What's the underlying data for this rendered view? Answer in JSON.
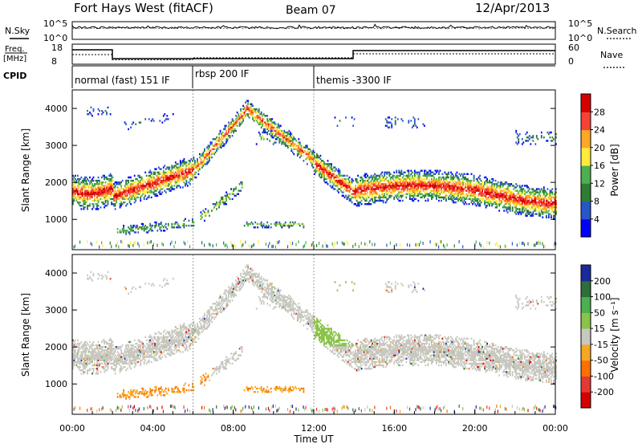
{
  "header": {
    "title": "Fort Hays West (fitACF)",
    "beam": "Beam 07",
    "date": "12/Apr/2013"
  },
  "top_panels": {
    "nsky_label": "N.Sky",
    "nsearch_label": "N.Search",
    "noise_ticks": [
      "10^5",
      "10^0"
    ],
    "freq_label": "Freq.",
    "freq_unit": "[MHz]",
    "freq_ticks": [
      "18",
      "8"
    ],
    "nave_label": "Nave",
    "nave_ticks": [
      "60",
      "0"
    ],
    "cpid_label": "CPID"
  },
  "cpid_segments": [
    {
      "label": "normal (fast) 151 IF",
      "start_hour": 0,
      "end_hour": 6
    },
    {
      "label": "rbsp 200 IF",
      "start_hour": 6,
      "end_hour": 12
    },
    {
      "label": "themis -3300 IF",
      "start_hour": 12,
      "end_hour": 24
    }
  ],
  "chart_data": [
    {
      "type": "heatmap",
      "name": "power",
      "ylabel": "Slant Range [km]",
      "ylim": [
        180,
        4500
      ],
      "yticks": [
        "1000",
        "2000",
        "3000",
        "4000"
      ],
      "colorbar_label": "Power [dB]",
      "colorbar_ticks": [
        "28",
        "24",
        "20",
        "16",
        "12",
        "8",
        "4"
      ],
      "colors": [
        "#0000ff",
        "#2a55c8",
        "#2e7d32",
        "#4caf50",
        "#ffeb3b",
        "#ffa726",
        "#f44336",
        "#d50000"
      ]
    },
    {
      "type": "heatmap",
      "name": "velocity",
      "ylabel": "Slant Range [km]",
      "ylim": [
        180,
        4500
      ],
      "yticks": [
        "1000",
        "2000",
        "3000",
        "4000"
      ],
      "xlabel": "Time UT",
      "xticks": [
        "00:00",
        "04:00",
        "08:00",
        "12:00",
        "16:00",
        "20:00",
        "00:00"
      ],
      "xlim": [
        0,
        24
      ],
      "colorbar_label": "Velocity [m s⁻¹]",
      "colorbar_ticks": [
        "200",
        "100",
        "50",
        "15",
        "-15",
        "-50",
        "-100",
        "-200"
      ],
      "colors": [
        "#1a2a9a",
        "#2e6e3a",
        "#4caf50",
        "#8bc34a",
        "#c8c8c0",
        "#f5a623",
        "#ff6f00",
        "#e53935",
        "#d50000"
      ]
    }
  ]
}
